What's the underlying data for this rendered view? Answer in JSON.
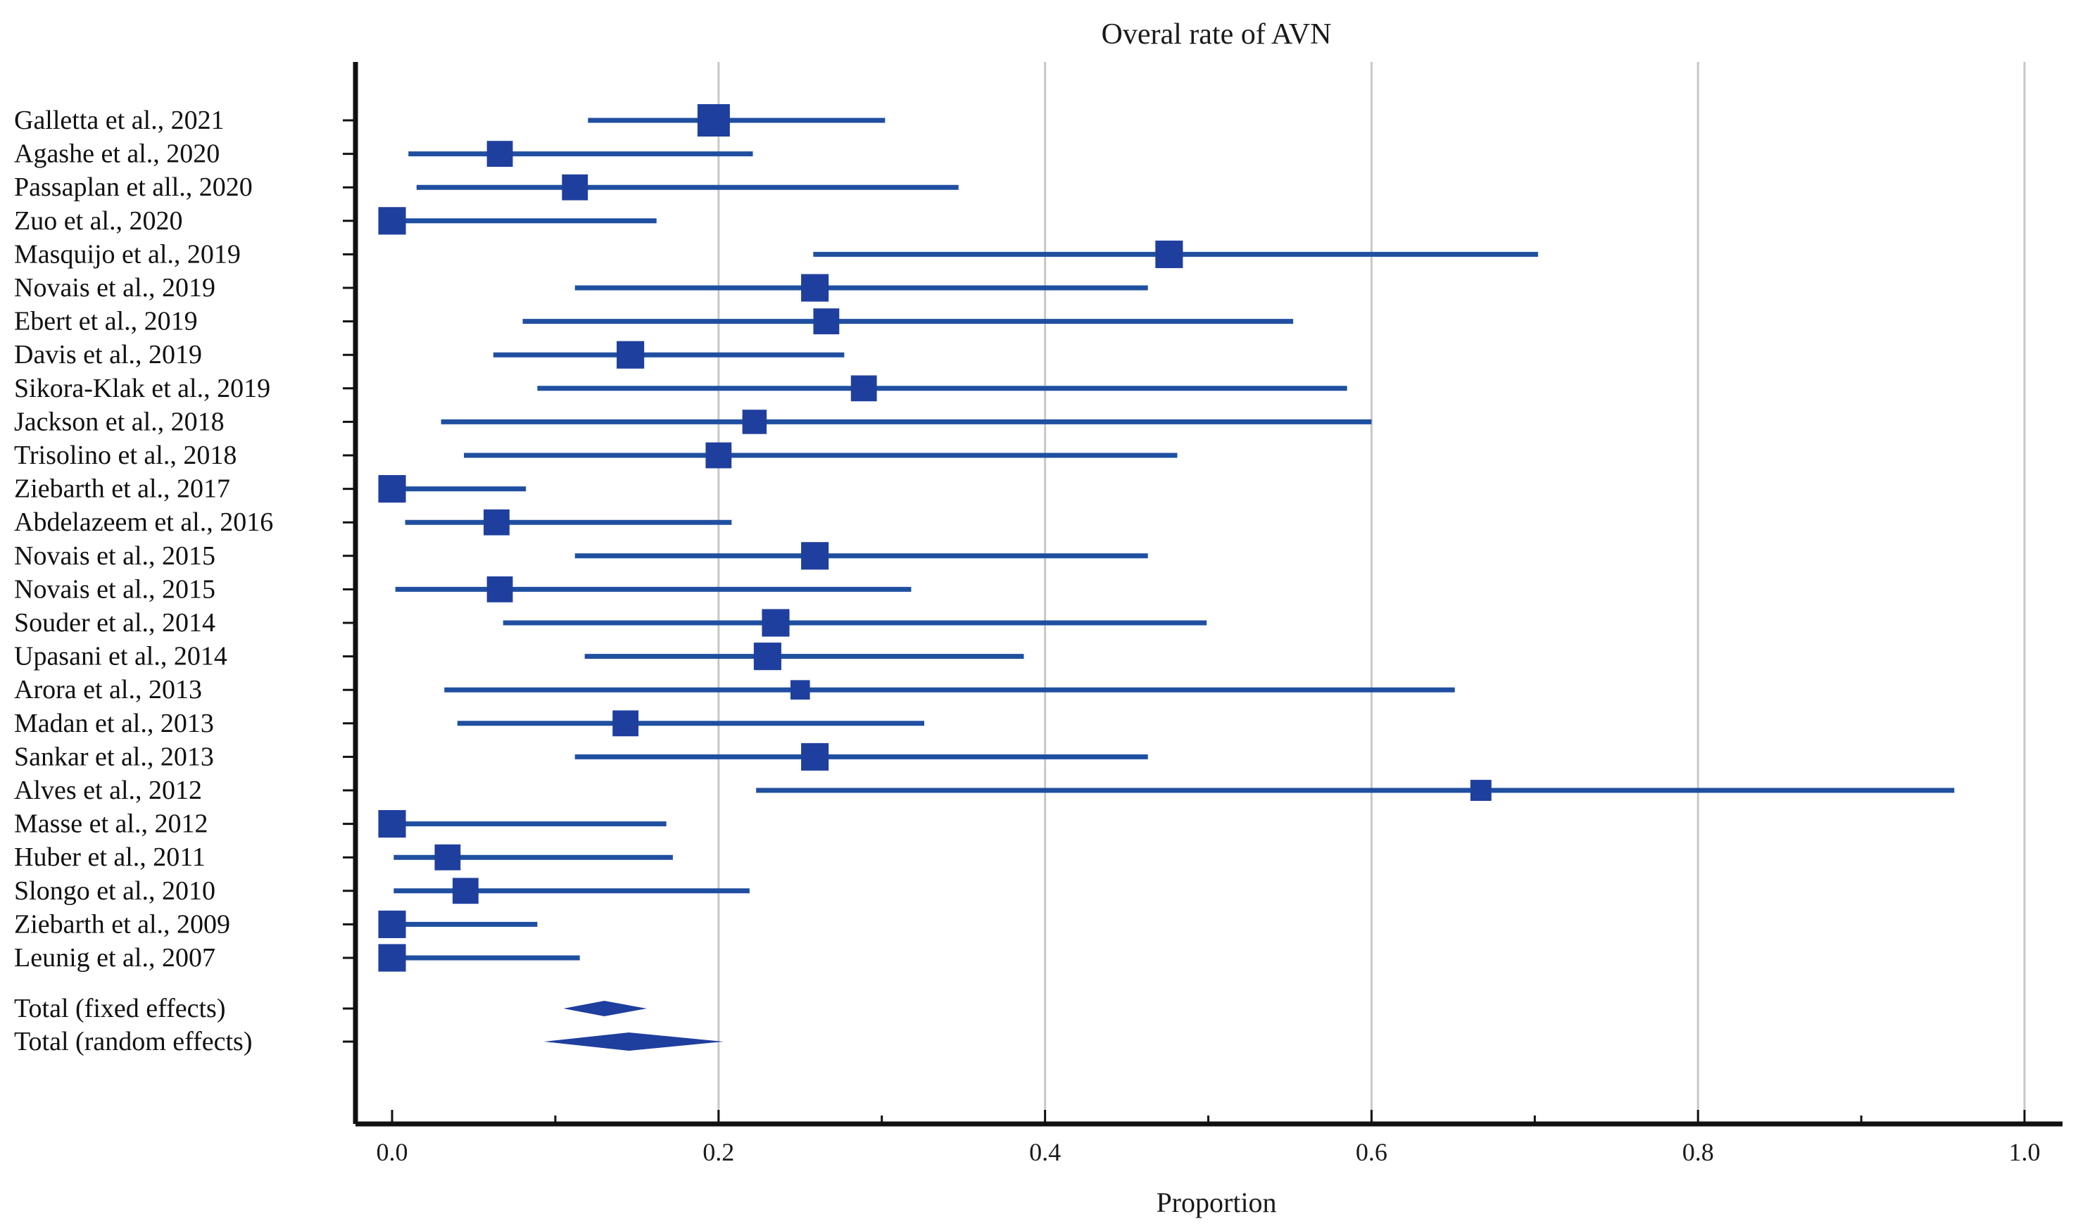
{
  "chart_data": {
    "type": "forest",
    "title": "Overal rate of AVN",
    "xlabel": "Proportion",
    "xlim": [
      0,
      1
    ],
    "xticks": [
      0,
      0.2,
      0.4,
      0.6,
      0.8,
      1.0
    ],
    "xtick_labels": [
      "0.0",
      "0.2",
      "0.4",
      "0.6",
      "0.8",
      "1.0"
    ],
    "grid": "vertical",
    "colors": {
      "mark": "#1f3f9e",
      "ci": "#1f4fa0",
      "axis": "#111111",
      "grid": "#c8c8c8"
    },
    "studies": [
      {
        "label": "Galletta et al., 2021",
        "estimate": 0.197,
        "lower": 0.12,
        "upper": 0.302,
        "weight": 1.0
      },
      {
        "label": "Agashe et al., 2020",
        "estimate": 0.066,
        "lower": 0.01,
        "upper": 0.221,
        "weight": 0.8
      },
      {
        "label": "Passaplan et all., 2020",
        "estimate": 0.112,
        "lower": 0.015,
        "upper": 0.347,
        "weight": 0.8
      },
      {
        "label": "Zuo et al., 2020",
        "estimate": 0.0,
        "lower": 0.0,
        "upper": 0.162,
        "weight": 0.85
      },
      {
        "label": "Masquijo et al., 2019",
        "estimate": 0.476,
        "lower": 0.258,
        "upper": 0.702,
        "weight": 0.85
      },
      {
        "label": "Novais et al., 2019",
        "estimate": 0.259,
        "lower": 0.112,
        "upper": 0.463,
        "weight": 0.85
      },
      {
        "label": "Ebert et al., 2019",
        "estimate": 0.266,
        "lower": 0.08,
        "upper": 0.552,
        "weight": 0.8
      },
      {
        "label": "Davis et al., 2019",
        "estimate": 0.146,
        "lower": 0.062,
        "upper": 0.277,
        "weight": 0.85
      },
      {
        "label": "Sikora-Klak et al., 2019",
        "estimate": 0.289,
        "lower": 0.089,
        "upper": 0.585,
        "weight": 0.8
      },
      {
        "label": "Jackson et al., 2018",
        "estimate": 0.222,
        "lower": 0.03,
        "upper": 0.6,
        "weight": 0.75
      },
      {
        "label": "Trisolino et al., 2018",
        "estimate": 0.2,
        "lower": 0.044,
        "upper": 0.481,
        "weight": 0.8
      },
      {
        "label": "Ziebarth et al., 2017",
        "estimate": 0.0,
        "lower": 0.0,
        "upper": 0.082,
        "weight": 0.85
      },
      {
        "label": "Abdelazeem et al., 2016",
        "estimate": 0.064,
        "lower": 0.008,
        "upper": 0.208,
        "weight": 0.8
      },
      {
        "label": "Novais et al., 2015",
        "estimate": 0.259,
        "lower": 0.112,
        "upper": 0.463,
        "weight": 0.85
      },
      {
        "label": "Novais et al., 2015",
        "estimate": 0.066,
        "lower": 0.002,
        "upper": 0.318,
        "weight": 0.8
      },
      {
        "label": "Souder et al., 2014",
        "estimate": 0.235,
        "lower": 0.068,
        "upper": 0.499,
        "weight": 0.85
      },
      {
        "label": "Upasani et al., 2014",
        "estimate": 0.23,
        "lower": 0.118,
        "upper": 0.387,
        "weight": 0.85
      },
      {
        "label": "Arora et al., 2013",
        "estimate": 0.25,
        "lower": 0.032,
        "upper": 0.651,
        "weight": 0.6
      },
      {
        "label": "Madan et al., 2013",
        "estimate": 0.143,
        "lower": 0.04,
        "upper": 0.326,
        "weight": 0.8
      },
      {
        "label": "Sankar et al., 2013",
        "estimate": 0.259,
        "lower": 0.112,
        "upper": 0.463,
        "weight": 0.85
      },
      {
        "label": "Alves et al., 2012",
        "estimate": 0.667,
        "lower": 0.223,
        "upper": 0.957,
        "weight": 0.65
      },
      {
        "label": "Masse et al., 2012",
        "estimate": 0.0,
        "lower": 0.0,
        "upper": 0.168,
        "weight": 0.85
      },
      {
        "label": "Huber et al., 2011",
        "estimate": 0.034,
        "lower": 0.001,
        "upper": 0.172,
        "weight": 0.8
      },
      {
        "label": "Slongo et al., 2010",
        "estimate": 0.045,
        "lower": 0.001,
        "upper": 0.219,
        "weight": 0.8
      },
      {
        "label": "Ziebarth et al., 2009",
        "estimate": 0.0,
        "lower": 0.0,
        "upper": 0.089,
        "weight": 0.85
      },
      {
        "label": "Leunig et al., 2007",
        "estimate": 0.0,
        "lower": 0.0,
        "upper": 0.115,
        "weight": 0.85
      }
    ],
    "totals": [
      {
        "label": "Total (fixed effects)",
        "estimate": 0.13,
        "lower": 0.105,
        "upper": 0.156
      },
      {
        "label": "Total (random effects)",
        "estimate": 0.145,
        "lower": 0.093,
        "upper": 0.203
      }
    ]
  }
}
